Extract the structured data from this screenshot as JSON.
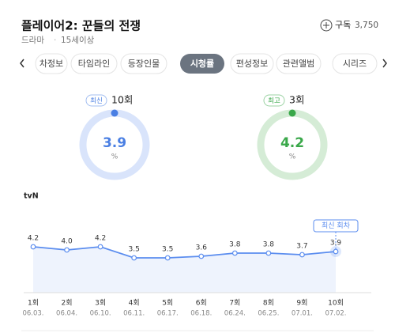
{
  "header": {
    "title": "플레이어2: 꾼들의 전쟁",
    "genre": "드라마",
    "age": "15세이상",
    "subscribe": "구독",
    "subscribers": "3,750"
  },
  "tabs": [
    "차정보",
    "타임라인",
    "등장인물",
    "시청률",
    "편성정보",
    "관련앨범",
    "시리즈"
  ],
  "gauges": [
    {
      "badge": "최신",
      "episode": "10회",
      "value": 3.9,
      "unit": "%",
      "color": "#4a7fe3",
      "track": "#d9e4fb"
    },
    {
      "badge": "최고",
      "episode": "3회",
      "value": 4.2,
      "unit": "%",
      "color": "#3aa84a",
      "track": "#d5ecd6"
    }
  ],
  "chart_data": {
    "type": "line",
    "channel": "tvN",
    "annotation": "최신 회차",
    "categories": [
      "1회",
      "2회",
      "3회",
      "4회",
      "5회",
      "6회",
      "7회",
      "8회",
      "9회",
      "10회"
    ],
    "dates": [
      "06.03.",
      "06.04.",
      "06.10.",
      "06.11.",
      "06.17.",
      "06.18.",
      "06.24.",
      "06.25.",
      "07.01.",
      "07.02."
    ],
    "series": [
      {
        "color": "#5b8def",
        "values": [
          4.2,
          4.0,
          4.2,
          3.5,
          3.5,
          3.6,
          3.8,
          3.8,
          3.7,
          3.9
        ],
        "value_labels": [
          "4.2",
          "4.0",
          "4.2",
          "3.5",
          "3.5",
          "3.6",
          "3.8",
          "3.8",
          "3.7",
          "3.9"
        ]
      }
    ]
  }
}
